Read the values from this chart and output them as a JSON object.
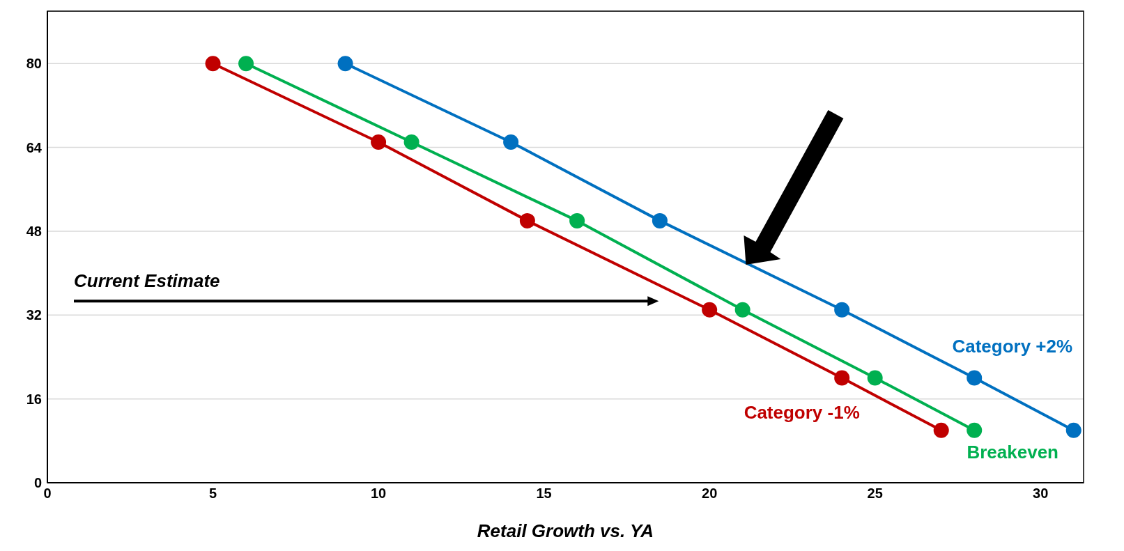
{
  "chart_data": {
    "type": "line",
    "xlabel": "Retail Growth vs. YA",
    "xlim": [
      0,
      31.3
    ],
    "xticks": [
      0,
      5,
      10,
      15,
      20,
      25,
      30
    ],
    "ylim": [
      0,
      90
    ],
    "yticks": [
      0,
      16,
      32,
      48,
      64,
      80
    ],
    "grid": "y",
    "legend": false,
    "marker": "circle",
    "line_style": "solid",
    "annotations": [
      "Current Estimate"
    ],
    "series": [
      {
        "name": "Category +2%",
        "color": "#0070c0",
        "x": [
          9,
          14,
          18.5,
          24,
          28,
          31
        ],
        "values": [
          80,
          65,
          50,
          33,
          20,
          10
        ]
      },
      {
        "name": "Breakeven",
        "color": "#00b050",
        "x": [
          6,
          11,
          16,
          21,
          25,
          28
        ],
        "values": [
          80,
          65,
          50,
          33,
          20,
          10
        ]
      },
      {
        "name": "Category -1%",
        "color": "#c00000",
        "x": [
          5,
          10,
          14.5,
          20,
          24,
          27
        ],
        "values": [
          80,
          65,
          50,
          33,
          20,
          10
        ]
      }
    ]
  }
}
